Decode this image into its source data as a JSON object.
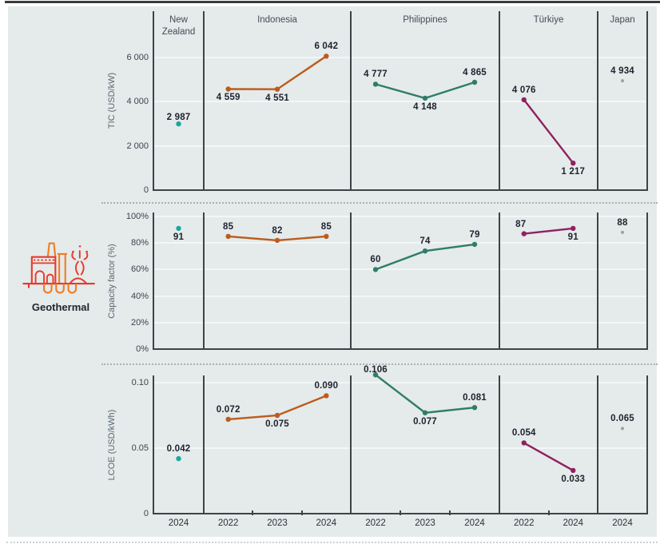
{
  "figure": {
    "row_label": "Geothermal"
  },
  "chart_data": {
    "type": "line",
    "row_label": "Geothermal",
    "grid": true,
    "columns": [
      {
        "name": "New Zealand",
        "years": [
          "2024"
        ]
      },
      {
        "name": "Indonesia",
        "years": [
          "2022",
          "2023",
          "2024"
        ]
      },
      {
        "name": "Philippines",
        "years": [
          "2022",
          "2023",
          "2024"
        ]
      },
      {
        "name": "Türkiye",
        "years": [
          "2022",
          "2024"
        ]
      },
      {
        "name": "Japan",
        "years": [
          "2024"
        ]
      }
    ],
    "panels": [
      {
        "id": "tic",
        "ylabel": "TIC (USD/kW)",
        "ymin": 0,
        "ymax": 8000,
        "ticks": [
          {
            "v": 0,
            "label": "0"
          },
          {
            "v": 2000,
            "label": "2 000"
          },
          {
            "v": 4000,
            "label": "4 000"
          },
          {
            "v": 6000,
            "label": "6 000"
          }
        ]
      },
      {
        "id": "cf",
        "ylabel": "Capacity factor (%)",
        "ymin": 0,
        "ymax": 103,
        "ticks": [
          {
            "v": 0,
            "label": "0%"
          },
          {
            "v": 20,
            "label": "20%"
          },
          {
            "v": 40,
            "label": "40%"
          },
          {
            "v": 60,
            "label": "60%"
          },
          {
            "v": 80,
            "label": "80%"
          },
          {
            "v": 100,
            "label": "100%"
          }
        ]
      },
      {
        "id": "lcoe",
        "ylabel": "LCOE (USD/kWh)",
        "ymin": 0,
        "ymax": 0.105,
        "ticks": [
          {
            "v": 0,
            "label": "0"
          },
          {
            "v": 0.05,
            "label": "0.05"
          },
          {
            "v": 0.1,
            "label": "0.10"
          }
        ]
      }
    ],
    "series": [
      {
        "country": "New Zealand",
        "color": "#1ba89e",
        "small": false,
        "tic": [
          {
            "year": "2024",
            "v": 2987,
            "label": "2 987",
            "lp": "a",
            "dy": 4
          }
        ],
        "cf": [
          {
            "year": "2024",
            "v": 91,
            "label": "91",
            "lp": "b"
          }
        ],
        "lcoe": [
          {
            "year": "2024",
            "v": 0.042,
            "label": "0.042",
            "lp": "a"
          }
        ]
      },
      {
        "country": "Indonesia",
        "color": "#bc5b1d",
        "small": false,
        "tic": [
          {
            "year": "2022",
            "v": 4559,
            "label": "4 559",
            "lp": "b"
          },
          {
            "year": "2023",
            "v": 4551,
            "label": "4 551",
            "lp": "b"
          },
          {
            "year": "2024",
            "v": 6042,
            "label": "6 042",
            "lp": "a"
          }
        ],
        "cf": [
          {
            "year": "2022",
            "v": 85,
            "label": "85",
            "lp": "a"
          },
          {
            "year": "2023",
            "v": 82,
            "label": "82",
            "lp": "a"
          },
          {
            "year": "2024",
            "v": 85,
            "label": "85",
            "lp": "a"
          }
        ],
        "lcoe": [
          {
            "year": "2022",
            "v": 0.072,
            "label": "0.072",
            "lp": "a"
          },
          {
            "year": "2023",
            "v": 0.075,
            "label": "0.075",
            "lp": "b"
          },
          {
            "year": "2024",
            "v": 0.09,
            "label": "0.090",
            "lp": "a"
          }
        ]
      },
      {
        "country": "Philippines",
        "color": "#2f7d66",
        "small": false,
        "tic": [
          {
            "year": "2022",
            "v": 4777,
            "label": "4 777",
            "lp": "a"
          },
          {
            "year": "2023",
            "v": 4148,
            "label": "4 148",
            "lp": "b"
          },
          {
            "year": "2024",
            "v": 4865,
            "label": "4 865",
            "lp": "a"
          }
        ],
        "cf": [
          {
            "year": "2022",
            "v": 60,
            "label": "60",
            "lp": "a"
          },
          {
            "year": "2023",
            "v": 74,
            "label": "74",
            "lp": "a"
          },
          {
            "year": "2024",
            "v": 79,
            "label": "79",
            "lp": "a"
          }
        ],
        "lcoe": [
          {
            "year": "2022",
            "v": 0.106,
            "label": "0.106",
            "lp": "a",
            "dy": 6
          },
          {
            "year": "2023",
            "v": 0.077,
            "label": "0.077",
            "lp": "b"
          },
          {
            "year": "2024",
            "v": 0.081,
            "label": "0.081",
            "lp": "a"
          }
        ]
      },
      {
        "country": "Türkiye",
        "color": "#8e2161",
        "small": false,
        "tic": [
          {
            "year": "2022",
            "v": 4076,
            "label": "4 076",
            "lp": "a"
          },
          {
            "year": "2024",
            "v": 1217,
            "label": "1 217",
            "lp": "b"
          }
        ],
        "cf": [
          {
            "year": "2022",
            "v": 87,
            "label": "87",
            "lp": "a",
            "dx": -4
          },
          {
            "year": "2024",
            "v": 91,
            "label": "91",
            "lp": "b"
          }
        ],
        "lcoe": [
          {
            "year": "2022",
            "v": 0.054,
            "label": "0.054",
            "lp": "a"
          },
          {
            "year": "2024",
            "v": 0.033,
            "label": "0.033",
            "lp": "b"
          }
        ]
      },
      {
        "country": "Japan",
        "color": "#9aa3a3",
        "small": true,
        "tic": [
          {
            "year": "2024",
            "v": 4934,
            "label": "4 934",
            "lp": "a"
          }
        ],
        "cf": [
          {
            "year": "2024",
            "v": 88,
            "label": "88",
            "lp": "a"
          }
        ],
        "lcoe": [
          {
            "year": "2024",
            "v": 0.065,
            "label": "0.065",
            "lp": "a"
          }
        ]
      }
    ],
    "icon_colors": {
      "red": "#e8392b",
      "orange": "#ef7d23"
    }
  }
}
